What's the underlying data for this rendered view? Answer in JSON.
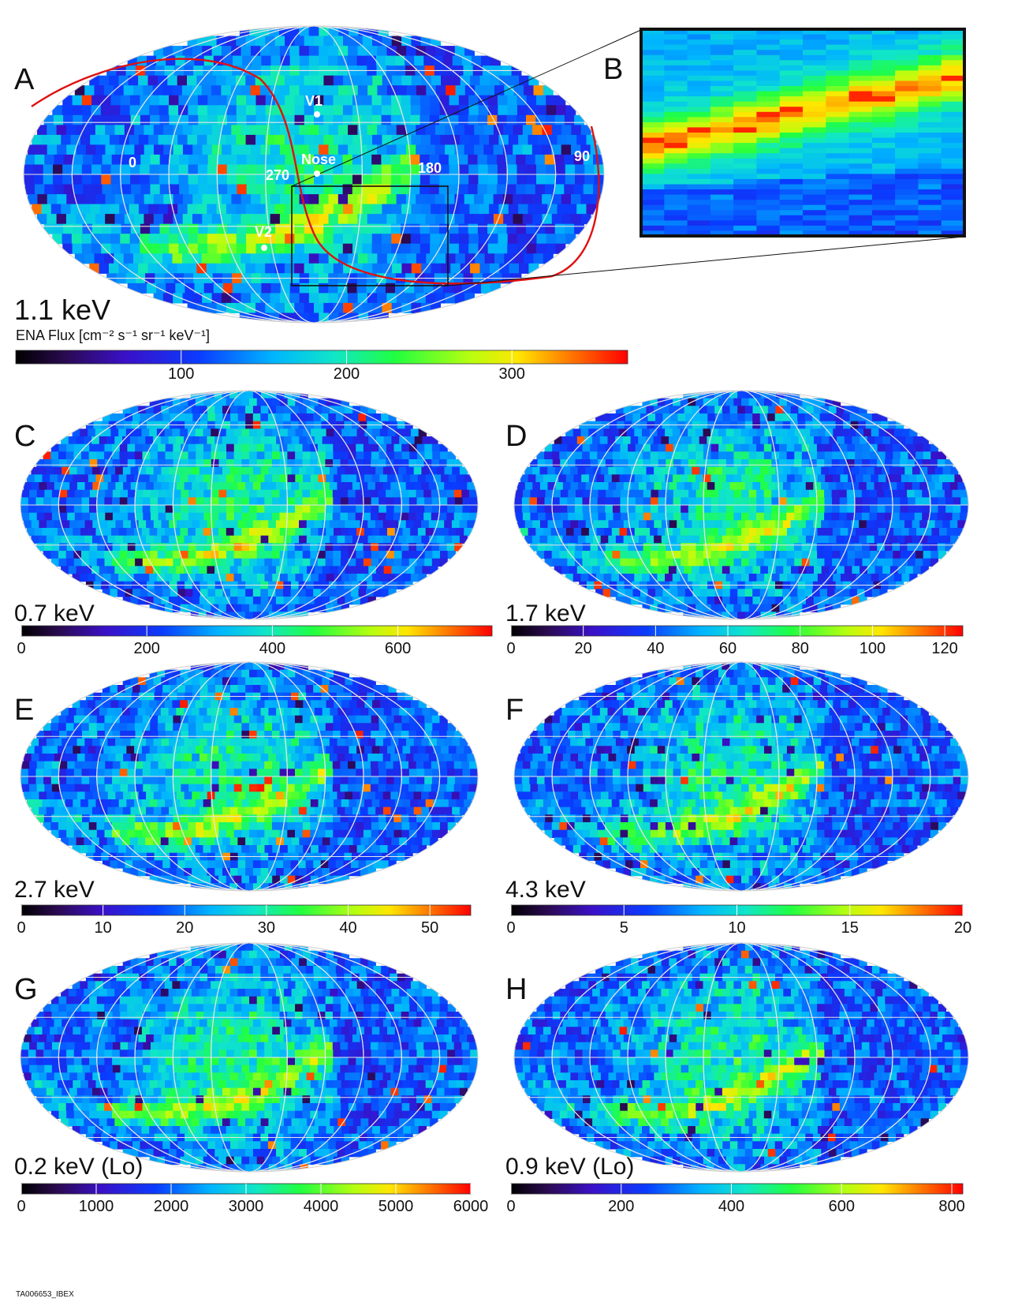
{
  "chart_data": [
    {
      "type": "heatmap",
      "panel": "A",
      "title": "1.1 keV",
      "colorbar_label": "ENA Flux [cm⁻² s⁻¹ sr⁻¹ keV⁻¹]",
      "colorbar_ticks": [
        100,
        200,
        300
      ],
      "zlim": [
        0,
        370
      ],
      "longitude_labels": [
        "0",
        "270",
        "180",
        "90"
      ],
      "annotations": [
        "V1",
        "Nose",
        "V2"
      ],
      "seed": 11,
      "features": {
        "ribbon": true,
        "blob": true,
        "tail": true,
        "v_markers": true
      }
    },
    {
      "type": "heatmap",
      "panel": "B",
      "title": "",
      "description_free": true,
      "seed": 5
    },
    {
      "type": "heatmap",
      "panel": "C",
      "title": "0.7 keV",
      "colorbar_ticks": [
        0,
        200,
        400,
        600
      ],
      "zlim": [
        0,
        750
      ],
      "seed": 3
    },
    {
      "type": "heatmap",
      "panel": "D",
      "title": "1.7 keV",
      "colorbar_ticks": [
        0,
        20,
        40,
        60,
        80,
        100,
        120
      ],
      "zlim": [
        0,
        125
      ],
      "seed": 7
    },
    {
      "type": "heatmap",
      "panel": "E",
      "title": "2.7 keV",
      "colorbar_ticks": [
        0,
        10,
        20,
        30,
        40,
        50
      ],
      "zlim": [
        0,
        55
      ],
      "seed": 13
    },
    {
      "type": "heatmap",
      "panel": "F",
      "title": "4.3 keV",
      "colorbar_ticks": [
        0,
        5,
        10,
        15,
        20
      ],
      "zlim": [
        0,
        20
      ],
      "seed": 17
    },
    {
      "type": "heatmap",
      "panel": "G",
      "title": "0.2 keV (Lo)",
      "colorbar_ticks": [
        0,
        1000,
        2000,
        3000,
        4000,
        5000,
        6000
      ],
      "zlim": [
        0,
        6000
      ],
      "seed": 19
    },
    {
      "type": "heatmap",
      "panel": "H",
      "title": "0.9 keV (Lo)",
      "colorbar_ticks": [
        0,
        200,
        400,
        600,
        800
      ],
      "zlim": [
        0,
        820
      ],
      "seed": 23
    }
  ],
  "footer": "TA006653_IBEX"
}
